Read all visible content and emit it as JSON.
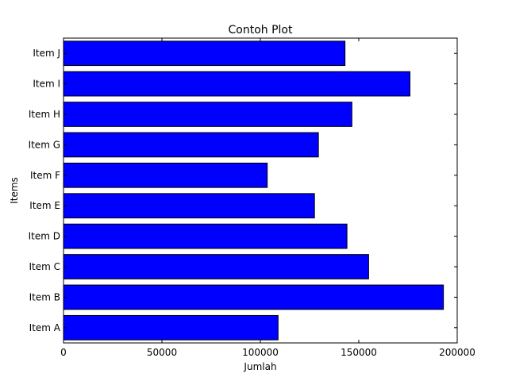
{
  "chart_data": {
    "type": "bar",
    "orientation": "horizontal",
    "title": "Contoh Plot",
    "xlabel": "Jumlah",
    "ylabel": "Items",
    "categories": [
      "Item A",
      "Item B",
      "Item C",
      "Item D",
      "Item E",
      "Item F",
      "Item G",
      "Item H",
      "Item I",
      "Item J"
    ],
    "values": [
      109000,
      193000,
      155000,
      144000,
      127500,
      103500,
      129500,
      146500,
      176000,
      143000
    ],
    "xlim": [
      0,
      200000
    ],
    "xticks": [
      0,
      50000,
      100000,
      150000,
      200000
    ],
    "xtick_labels": [
      "0",
      "50000",
      "100000",
      "150000",
      "200000"
    ],
    "grid": false,
    "colors": {
      "bar_fill": "#0000ff",
      "bar_edge": "#000000",
      "background": "#ffffff"
    }
  }
}
